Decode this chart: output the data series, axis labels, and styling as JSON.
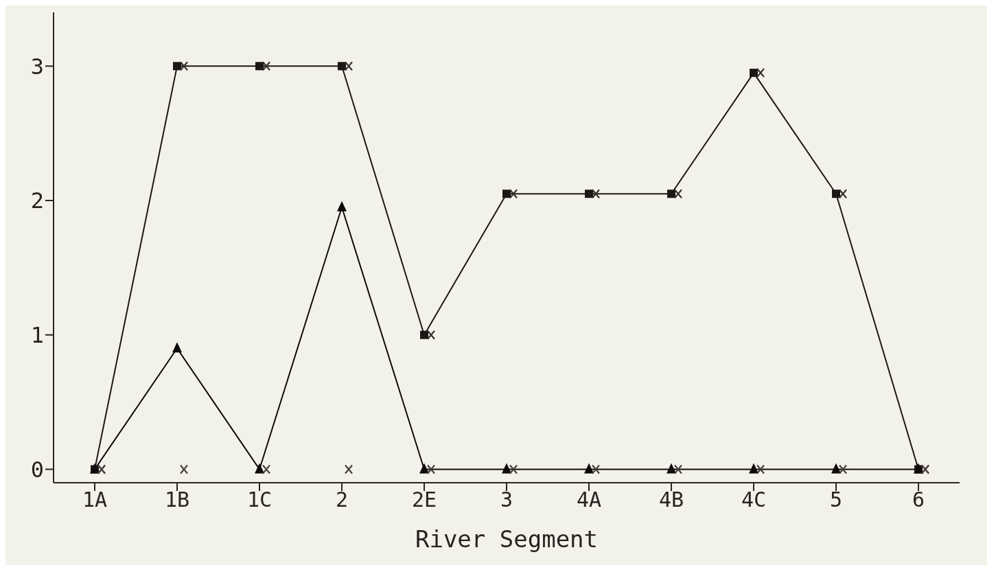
{
  "chart_data": {
    "type": "line",
    "xlabel": "River Segment",
    "categories": [
      "1A",
      "1B",
      "1C",
      "2",
      "2E",
      "3",
      "4A",
      "4B",
      "4C",
      "5",
      "6"
    ],
    "series": [
      {
        "marker": "square",
        "color": "#1c1716",
        "values": [
          0,
          3,
          3,
          3,
          1,
          2.05,
          2.05,
          2.05,
          2.95,
          2.05,
          0
        ]
      },
      {
        "type": "scatter",
        "marker": "cross",
        "color": "#3a302e",
        "values": [
          0,
          3,
          3,
          3,
          1,
          2.05,
          2.05,
          2.05,
          2.95,
          2.05,
          0
        ]
      },
      {
        "marker": "triangle",
        "color": "#0e0b0b",
        "values": [
          0,
          0.9,
          0,
          1.95,
          0,
          0,
          0,
          0,
          0,
          0,
          0
        ]
      },
      {
        "type": "scatter",
        "marker": "cross",
        "color": "#4a3f3d",
        "values": [
          0,
          0,
          0,
          0,
          0,
          0,
          0,
          0,
          0,
          0,
          0
        ]
      }
    ],
    "ylim": [
      -0.1,
      3.4
    ],
    "yticks": [
      0,
      1,
      2,
      3
    ]
  }
}
